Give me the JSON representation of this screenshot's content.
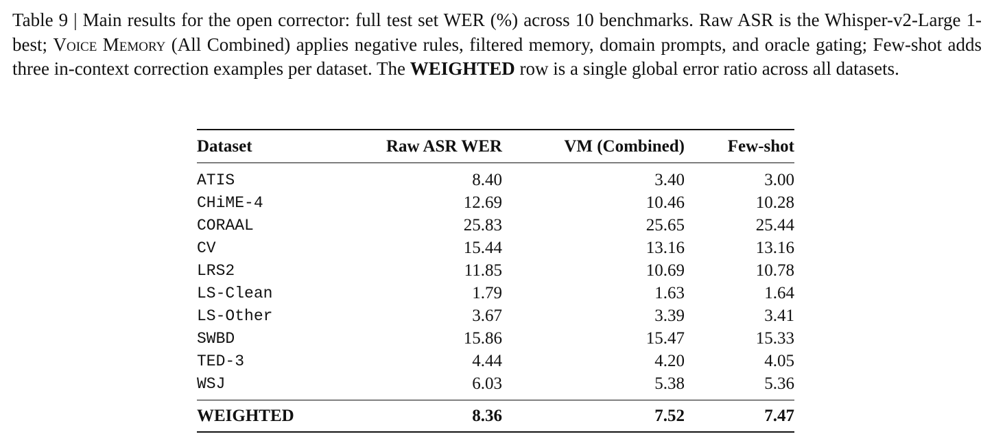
{
  "caption": {
    "parts": [
      "Table 9 | Main results for the open corrector: full test set WER (%) across 10 benchmarks. Raw ASR is the Whisper-v2-Large 1-best; ",
      "Voice Memory",
      " (All Combined) applies negative rules, filtered memory, domain prompts, and oracle gating; Few-shot adds three in-context correction examples per dataset. The ",
      "WEIGHTED",
      " row is a single global error ratio across all datasets."
    ]
  },
  "table": {
    "header": [
      "Dataset",
      "Raw ASR WER",
      "VM (Combined)",
      "Few-shot"
    ],
    "rows": [
      [
        "ATIS",
        "8.40",
        "3.40",
        "3.00"
      ],
      [
        "CHiME-4",
        "12.69",
        "10.46",
        "10.28"
      ],
      [
        "CORAAL",
        "25.83",
        "25.65",
        "25.44"
      ],
      [
        "CV",
        "15.44",
        "13.16",
        "13.16"
      ],
      [
        "LRS2",
        "11.85",
        "10.69",
        "10.78"
      ],
      [
        "LS-Clean",
        "1.79",
        "1.63",
        "1.64"
      ],
      [
        "LS-Other",
        "3.67",
        "3.39",
        "3.41"
      ],
      [
        "SWBD",
        "15.86",
        "15.47",
        "15.33"
      ],
      [
        "TED-3",
        "4.44",
        "4.20",
        "4.05"
      ],
      [
        "WSJ",
        "6.03",
        "5.38",
        "5.36"
      ]
    ],
    "total": [
      "WEIGHTED",
      "8.36",
      "7.52",
      "7.47"
    ]
  }
}
